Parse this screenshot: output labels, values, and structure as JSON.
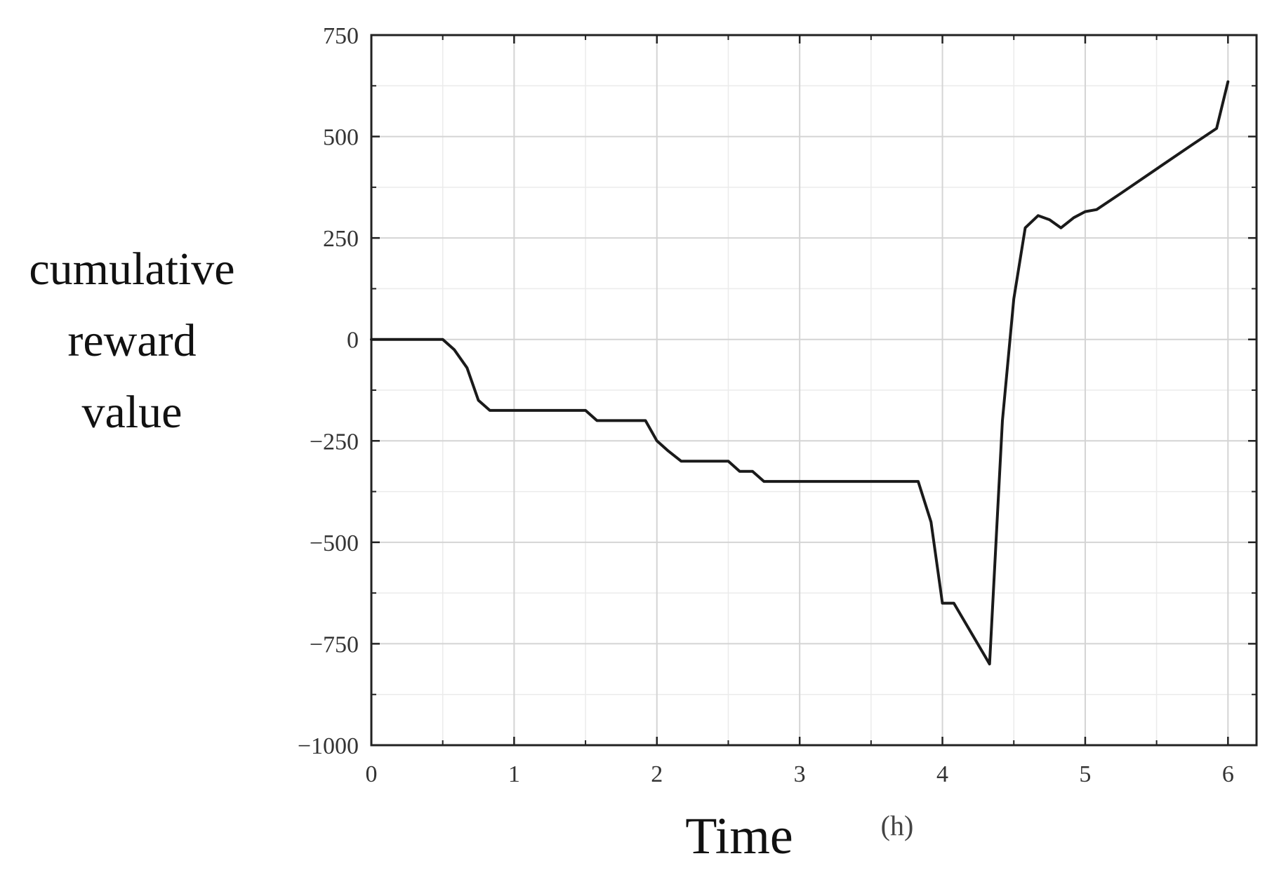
{
  "chart_data": {
    "type": "line",
    "xlabel": "Time",
    "xunit": "(h)",
    "ylabel_lines": [
      "cumulative",
      "reward",
      "value"
    ],
    "xlim": [
      0,
      6.2
    ],
    "ylim": [
      -1000,
      750
    ],
    "xticks": [
      0,
      1,
      2,
      3,
      4,
      5,
      6
    ],
    "yticks": [
      750,
      500,
      250,
      0,
      -250,
      -500,
      -750,
      -1000
    ],
    "grid": true,
    "line_color": "#1a1a1a",
    "series": [
      {
        "x": [
          0,
          0.5,
          0.58,
          0.67,
          0.75,
          0.83,
          1.0,
          1.25,
          1.5,
          1.58,
          1.75,
          1.92,
          2.0,
          2.08,
          2.17,
          2.25,
          2.5,
          2.58,
          2.67,
          2.75,
          3.0,
          3.5,
          3.83,
          3.92,
          4.0,
          4.08,
          4.33,
          4.42,
          4.5,
          4.58,
          4.67,
          4.75,
          4.83,
          4.92,
          5.0,
          5.08,
          5.25,
          5.5,
          5.75,
          5.92,
          6.0
        ],
        "y": [
          0,
          0,
          -25,
          -70,
          -150,
          -175,
          -175,
          -175,
          -175,
          -200,
          -200,
          -200,
          -250,
          -275,
          -300,
          -300,
          -300,
          -325,
          -325,
          -350,
          -350,
          -350,
          -350,
          -450,
          -650,
          -650,
          -800,
          -200,
          100,
          275,
          305,
          295,
          275,
          300,
          315,
          320,
          360,
          420,
          480,
          520,
          635
        ]
      }
    ]
  }
}
